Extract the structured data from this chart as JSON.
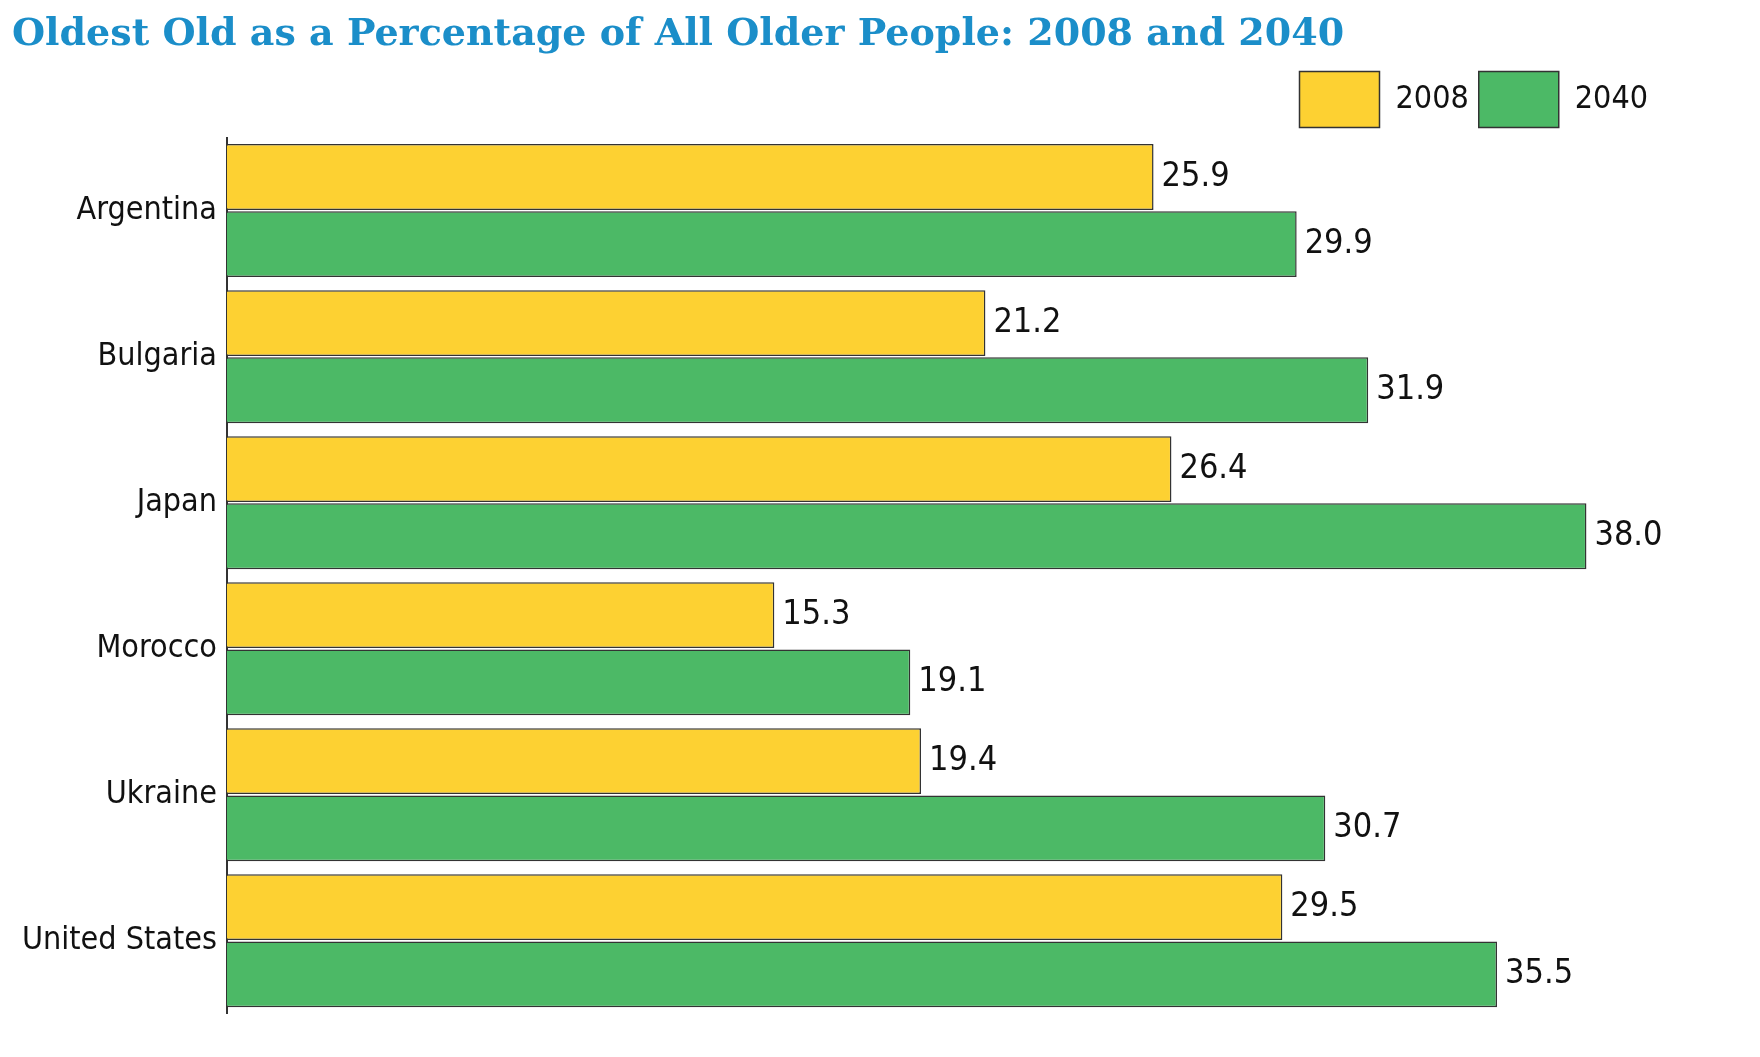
{
  "chart_data": {
    "type": "bar",
    "orientation": "horizontal",
    "title": "Oldest Old as a Percentage of All Older People: 2008 and 2040",
    "categories": [
      "Argentina",
      "Bulgaria",
      "Japan",
      "Morocco",
      "Ukraine",
      "United States"
    ],
    "series": [
      {
        "name": "2008",
        "color": "#fdd132",
        "values": [
          25.9,
          21.2,
          26.4,
          15.3,
          19.4,
          29.5
        ],
        "value_labels": [
          "25.9",
          "21.2",
          "26.4",
          "15.3",
          "19.4",
          "29.5"
        ]
      },
      {
        "name": "2040",
        "color": "#4cb966",
        "values": [
          29.9,
          31.9,
          38.0,
          19.1,
          30.7,
          35.5
        ],
        "value_labels": [
          "29.9",
          "31.9",
          "38.0",
          "19.1",
          "30.7",
          "35.5"
        ]
      }
    ],
    "legend": "top right"
  }
}
